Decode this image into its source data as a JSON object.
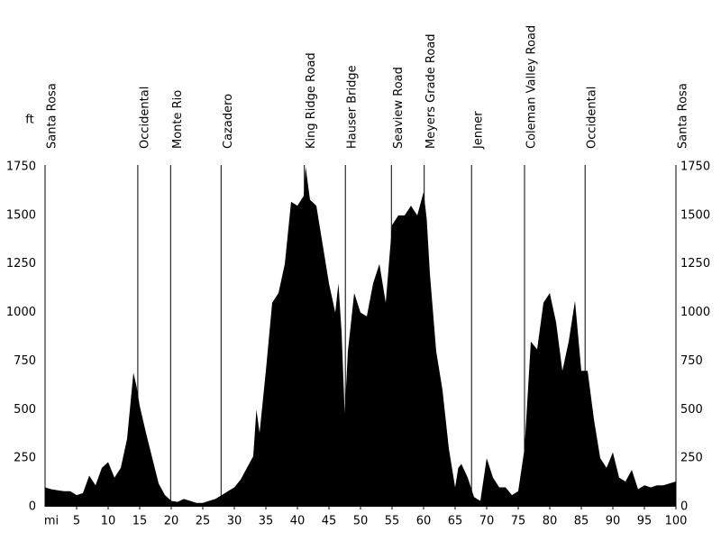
{
  "chart_data": {
    "type": "area",
    "y_label": "ft",
    "x_label": "mi",
    "color": "#000000",
    "xlim": [
      0,
      100
    ],
    "ylim": [
      0,
      1750
    ],
    "yticks": [
      0,
      250,
      500,
      750,
      1000,
      1250,
      1500,
      1750
    ],
    "xticks": [
      5,
      10,
      15,
      20,
      25,
      30,
      35,
      40,
      45,
      50,
      55,
      60,
      65,
      70,
      75,
      80,
      85,
      90,
      95,
      100
    ],
    "waypoints": [
      {
        "name": "Santa Rosa",
        "mi": 0
      },
      {
        "name": "Occidental",
        "mi": 14.7
      },
      {
        "name": "Monte Rio",
        "mi": 19.9
      },
      {
        "name": "Cazadero",
        "mi": 27.9
      },
      {
        "name": "King Ridge Road",
        "mi": 41.1
      },
      {
        "name": "Hauser Bridge",
        "mi": 47.6
      },
      {
        "name": "Seaview Road",
        "mi": 54.9
      },
      {
        "name": "Meyers Grade Road",
        "mi": 60.1
      },
      {
        "name": "Jenner",
        "mi": 67.6
      },
      {
        "name": "Coleman Valley Road",
        "mi": 76
      },
      {
        "name": "Occidental",
        "mi": 85.6
      },
      {
        "name": "Santa Rosa",
        "mi": 100
      }
    ],
    "x": [
      0,
      1,
      2,
      3,
      4,
      5,
      6,
      7,
      8,
      9,
      10,
      11,
      12,
      13,
      14,
      14.5,
      15,
      16,
      17,
      18,
      19,
      20,
      21,
      22,
      23,
      24,
      25,
      26,
      27,
      28,
      29,
      30,
      31,
      32,
      33,
      33.5,
      34,
      35,
      36,
      37,
      38,
      39,
      40,
      41,
      41.3,
      42,
      43,
      44,
      45,
      46,
      46.5,
      47,
      47.5,
      48,
      49,
      50,
      51,
      52,
      53,
      54,
      55,
      56,
      57,
      58,
      59,
      60,
      60.5,
      61,
      62,
      63,
      64,
      65,
      65.5,
      66,
      67,
      68,
      69,
      70,
      71,
      72,
      73,
      74,
      75,
      76,
      77,
      78,
      79,
      80,
      81,
      82,
      83,
      84,
      85,
      86,
      87,
      88,
      89,
      90,
      91,
      92,
      93,
      94,
      95,
      96,
      97,
      98,
      99,
      100
    ],
    "values": [
      100,
      90,
      85,
      80,
      80,
      60,
      70,
      160,
      110,
      200,
      230,
      150,
      200,
      350,
      690,
      620,
      520,
      380,
      250,
      120,
      60,
      30,
      25,
      40,
      30,
      20,
      20,
      30,
      40,
      60,
      80,
      100,
      140,
      200,
      260,
      500,
      380,
      700,
      1050,
      1100,
      1250,
      1570,
      1550,
      1600,
      1750,
      1580,
      1550,
      1350,
      1150,
      1000,
      1150,
      900,
      480,
      800,
      1100,
      1000,
      980,
      1150,
      1250,
      1050,
      1450,
      1500,
      1500,
      1550,
      1500,
      1620,
      1480,
      1200,
      800,
      600,
      300,
      100,
      200,
      220,
      150,
      50,
      30,
      250,
      150,
      100,
      100,
      60,
      80,
      300,
      850,
      810,
      1050,
      1100,
      950,
      700,
      850,
      1060,
      700,
      700,
      450,
      250,
      200,
      280,
      150,
      130,
      190,
      90,
      110,
      100,
      110,
      110,
      120,
      130
    ]
  }
}
